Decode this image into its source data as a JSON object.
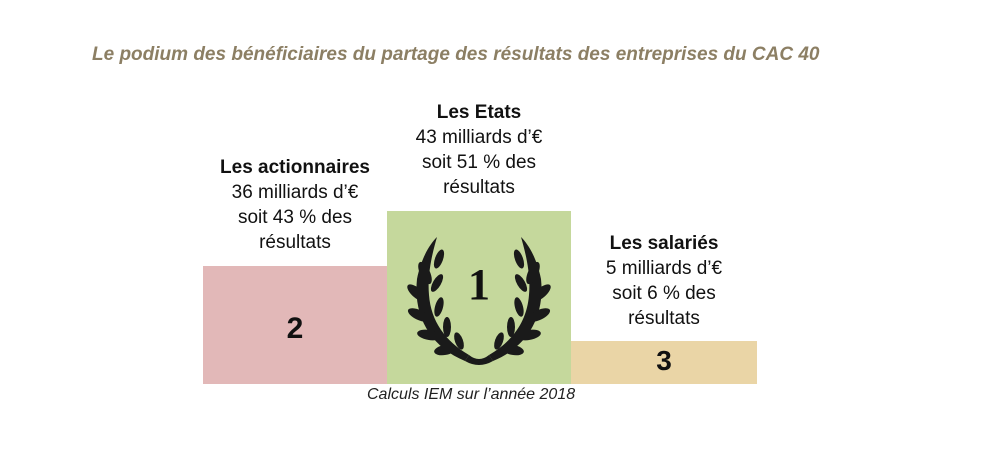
{
  "title": "Le podium des bénéficiaires du partage des résultats des entreprises du CAC 40",
  "footer": "Calculs IEM sur l’année 2018",
  "colors": {
    "title": "#8c7f64",
    "rank1": "#c5d89c",
    "rank2": "#e2b8b8",
    "rank3": "#ead5a6"
  },
  "podium": {
    "first": {
      "rank": "1",
      "name": "Les Etats",
      "amount": "43 milliards d’€",
      "share": "soit 51 % des",
      "share_cont": "résultats"
    },
    "second": {
      "rank": "2",
      "name": "Les actionnaires",
      "amount": "36 milliards d’€",
      "share": "soit 43 % des",
      "share_cont": "résultats"
    },
    "third": {
      "rank": "3",
      "name": "Les salariés",
      "amount": "5 milliards d’€",
      "share": "soit 6 % des",
      "share_cont": "résultats"
    }
  },
  "chart_data": {
    "type": "bar",
    "categories": [
      "Les actionnaires",
      "Les Etats",
      "Les salariés"
    ],
    "values": [
      36,
      43,
      5
    ],
    "percent_of_results": [
      43,
      51,
      6
    ],
    "ranks": [
      2,
      1,
      3
    ],
    "unit": "milliards d’€",
    "title": "Le podium des bénéficiaires du partage des résultats des entreprises du CAC 40"
  }
}
